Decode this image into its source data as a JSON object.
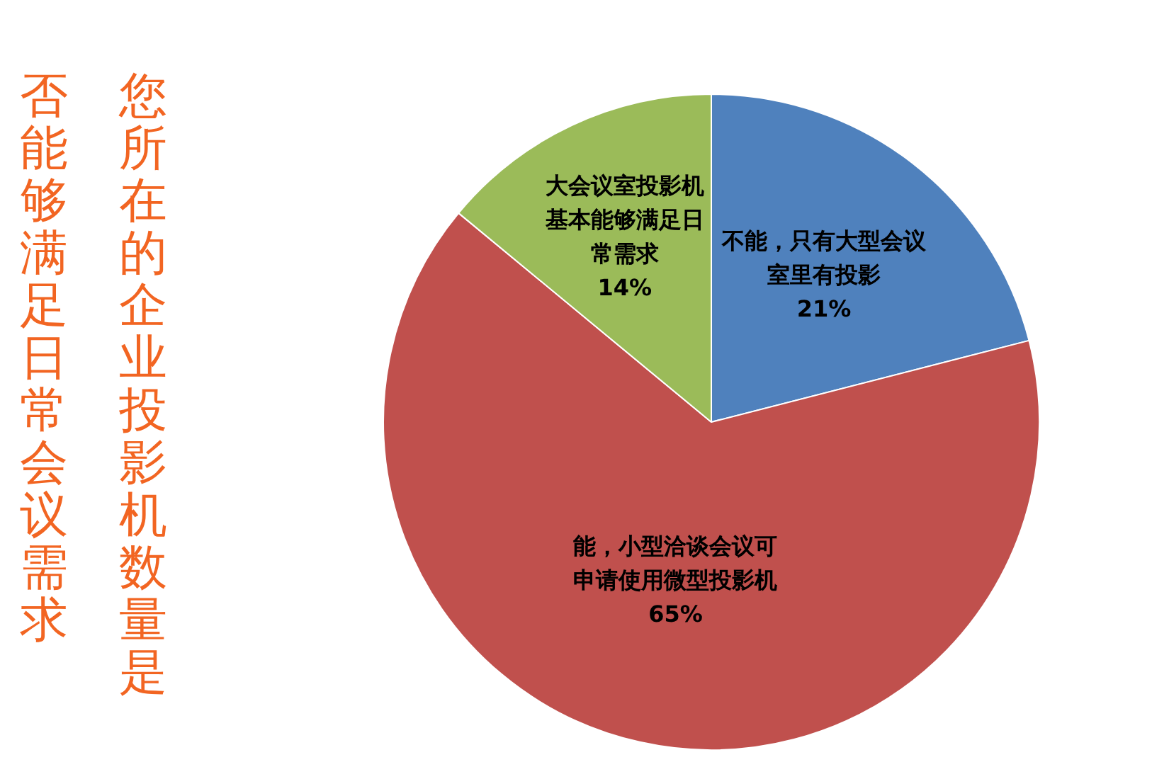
{
  "chart_data": {
    "type": "pie",
    "title": "您所在的企业投影机数量是否能够满足日常会议需求",
    "categories": [
      "不能，只有大型会议室里有投影",
      "能，小型洽谈会议可申请使用微型投影机",
      "大会议室投影机基本能够满足日常需求"
    ],
    "values": [
      21,
      65,
      14
    ],
    "colors": [
      "#4f81bd",
      "#c0504d",
      "#9bbb59"
    ],
    "value_labels": [
      "21%",
      "65%",
      "14%"
    ]
  }
}
